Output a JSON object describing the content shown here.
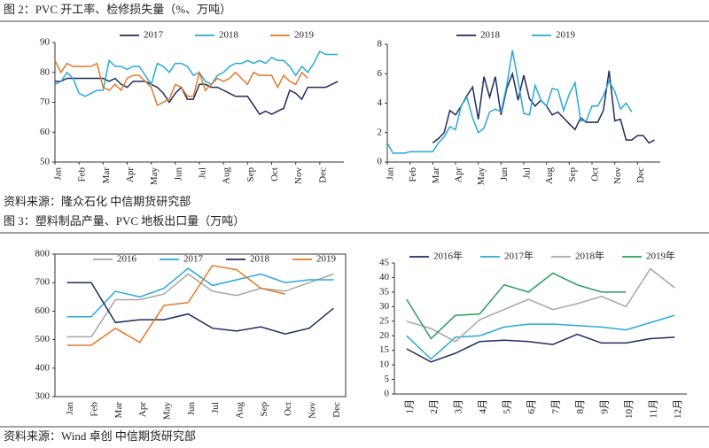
{
  "captions": [
    "图 2：PVC 开工率、检修损失量（%、万吨）",
    "图 3：塑料制品产量、PVC 地板出口量（万吨）"
  ],
  "sources": [
    "资料来源：隆众石化  中信期货研究部",
    "资料来源：Wind  卓创  中信期货研究部"
  ],
  "chart_data": [
    {
      "type": "line",
      "x": [
        0,
        1,
        2,
        3,
        4,
        5,
        6,
        7,
        8,
        9,
        10,
        11,
        12,
        13,
        14,
        15,
        16,
        17,
        18,
        19,
        20,
        21,
        22,
        23,
        24,
        25,
        26,
        27,
        28,
        29,
        30,
        31,
        32,
        33,
        34,
        35,
        36,
        37,
        38,
        39,
        40,
        41,
        42,
        43,
        44,
        45,
        46,
        47
      ],
      "xlim": [
        0,
        48
      ],
      "xticks": [
        {
          "value": 0,
          "label": "Jan"
        },
        {
          "value": 4,
          "label": "Feb"
        },
        {
          "value": 8,
          "label": "Mar"
        },
        {
          "value": 12,
          "label": "Apr"
        },
        {
          "value": 16,
          "label": "May"
        },
        {
          "value": 20,
          "label": "Jun"
        },
        {
          "value": 24,
          "label": "Jul"
        },
        {
          "value": 28,
          "label": "Aug"
        },
        {
          "value": 32,
          "label": "Sep"
        },
        {
          "value": 36,
          "label": "Oct"
        },
        {
          "value": 40,
          "label": "Nov"
        },
        {
          "value": 44,
          "label": "Dec"
        }
      ],
      "ylim": [
        50,
        90
      ],
      "yticks": [
        50,
        60,
        70,
        80,
        90
      ],
      "series": [
        {
          "name": "2017",
          "color": "#1f2d5c",
          "values": [
            77,
            77,
            78,
            78,
            78,
            78,
            78,
            78,
            78,
            77,
            78,
            76,
            75,
            77,
            77,
            77,
            76,
            75,
            73,
            70,
            73,
            75,
            71,
            71,
            76,
            76,
            75,
            75,
            74,
            73,
            72,
            72,
            72,
            69,
            66,
            67,
            66,
            67,
            68,
            74,
            73,
            71,
            75,
            75,
            75,
            75,
            76,
            77
          ]
        },
        {
          "name": "2018",
          "color": "#29a9d8",
          "values": [
            76,
            77,
            80,
            78,
            73,
            72,
            73,
            74,
            74,
            84,
            82,
            82,
            81,
            82,
            82,
            79,
            76,
            83,
            82,
            80,
            83,
            83,
            82,
            79,
            80,
            77,
            76,
            79,
            80,
            82,
            83,
            83,
            84,
            83,
            84,
            83,
            85,
            84,
            84,
            82,
            79,
            82,
            80,
            83,
            87,
            86,
            86,
            86
          ]
        },
        {
          "name": "2019",
          "color": "#e07a28",
          "values": [
            84,
            80,
            83,
            82,
            82,
            82,
            82,
            83,
            75,
            74,
            76,
            74,
            78,
            79,
            79,
            77,
            75,
            69,
            70,
            71,
            76,
            75,
            72,
            72,
            80,
            74,
            76,
            78,
            77,
            78,
            80,
            78,
            76,
            80,
            79,
            79,
            79,
            75,
            79,
            77,
            76,
            80,
            78,
            null,
            null,
            null,
            null,
            null
          ]
        }
      ]
    },
    {
      "type": "line",
      "x": [
        0,
        1,
        2,
        3,
        4,
        5,
        6,
        7,
        8,
        9,
        10,
        11,
        12,
        13,
        14,
        15,
        16,
        17,
        18,
        19,
        20,
        21,
        22,
        23,
        24,
        25,
        26,
        27,
        28,
        29,
        30,
        31,
        32,
        33,
        34,
        35,
        36,
        37,
        38,
        39,
        40,
        41,
        42,
        43,
        44,
        45,
        46,
        47
      ],
      "xlim": [
        0,
        48
      ],
      "xticks": [
        {
          "value": 0,
          "label": "Jan"
        },
        {
          "value": 4,
          "label": "Feb"
        },
        {
          "value": 8,
          "label": "Mar"
        },
        {
          "value": 12,
          "label": "Apr"
        },
        {
          "value": 16,
          "label": "May"
        },
        {
          "value": 20,
          "label": "Jun"
        },
        {
          "value": 24,
          "label": "Jul"
        },
        {
          "value": 28,
          "label": "Aug"
        },
        {
          "value": 32,
          "label": "Sep"
        },
        {
          "value": 36,
          "label": "Oct"
        },
        {
          "value": 40,
          "label": "Nov"
        },
        {
          "value": 44,
          "label": "Dec"
        }
      ],
      "ylim": [
        0,
        8
      ],
      "yticks": [
        0,
        2,
        4,
        6,
        8
      ],
      "series": [
        {
          "name": "2018",
          "color": "#1f2d5c",
          "values": [
            null,
            null,
            null,
            null,
            null,
            null,
            null,
            null,
            1.3,
            1.6,
            2.0,
            3.5,
            3.2,
            3.8,
            4.5,
            5.1,
            2.9,
            5.8,
            4.4,
            5.8,
            3.2,
            5.0,
            6.0,
            4.2,
            5.9,
            4.3,
            3.8,
            4.2,
            3.8,
            3.2,
            3.4,
            3.0,
            2.6,
            2.2,
            3.0,
            2.7,
            2.7,
            2.7,
            3.5,
            6.2,
            2.8,
            2.9,
            1.5,
            1.5,
            1.8,
            1.8,
            1.3,
            1.5
          ]
        },
        {
          "name": "2019",
          "color": "#29a9d8",
          "values": [
            1.3,
            0.6,
            0.6,
            0.6,
            0.7,
            0.7,
            0.7,
            0.7,
            0.7,
            1.3,
            1.7,
            2.4,
            2.2,
            3.8,
            4.4,
            3.0,
            2.0,
            2.3,
            3.4,
            3.6,
            3.4,
            5.2,
            7.6,
            5.5,
            3.3,
            3.2,
            5.2,
            4.2,
            3.8,
            5.0,
            4.9,
            3.5,
            4.6,
            5.4,
            2.8,
            2.8,
            3.8,
            3.8,
            4.5,
            5.5,
            4.8,
            3.6,
            4.0,
            3.4,
            null,
            null,
            null,
            null
          ]
        }
      ]
    },
    {
      "type": "line",
      "categories": [
        "Jan",
        "Feb",
        "Mar",
        "Apr",
        "May",
        "Jun",
        "Jul",
        "Aug",
        "Sep",
        "Oct",
        "Nov",
        "Dec"
      ],
      "ylim": [
        300,
        800
      ],
      "yticks": [
        300,
        400,
        500,
        600,
        700,
        800
      ],
      "series": [
        {
          "name": "2016",
          "color": "#a6a6a6",
          "values": [
            510,
            510,
            640,
            640,
            660,
            730,
            670,
            655,
            680,
            670,
            700,
            730
          ]
        },
        {
          "name": "2017",
          "color": "#29a9d8",
          "values": [
            580,
            580,
            670,
            650,
            680,
            750,
            690,
            710,
            730,
            700,
            710,
            710
          ]
        },
        {
          "name": "2018",
          "color": "#1f2d5c",
          "values": [
            700,
            700,
            560,
            570,
            570,
            590,
            540,
            530,
            545,
            520,
            540,
            610
          ]
        },
        {
          "name": "2019",
          "color": "#e07a28",
          "values": [
            480,
            480,
            540,
            490,
            620,
            630,
            760,
            745,
            680,
            660,
            null,
            null
          ]
        }
      ]
    },
    {
      "type": "line",
      "categories": [
        "1月",
        "2月",
        "3月",
        "4月",
        "5月",
        "6月",
        "7月",
        "8月",
        "9月",
        "10月",
        "11月",
        "12月"
      ],
      "ylim": [
        0,
        45
      ],
      "yticks": [
        0,
        5,
        10,
        15,
        20,
        25,
        30,
        35,
        40,
        45
      ],
      "series": [
        {
          "name": "2016年",
          "color": "#1f2d5c",
          "values": [
            15.5,
            11,
            14,
            18,
            18.5,
            18,
            17,
            20.5,
            17.5,
            17.5,
            19,
            19.5
          ]
        },
        {
          "name": "2017年",
          "color": "#29a9d8",
          "values": [
            20,
            12,
            19.5,
            20,
            23,
            24,
            24,
            23.5,
            23,
            22,
            24.5,
            27
          ]
        },
        {
          "name": "2018年",
          "color": "#a6a6a6",
          "values": [
            25,
            22.5,
            18,
            25.5,
            29,
            32.5,
            29,
            31,
            33.5,
            30,
            43,
            36.5
          ]
        },
        {
          "name": "2019年",
          "color": "#2a9d5a",
          "values": [
            32.5,
            19,
            27,
            27.5,
            37.5,
            35,
            41.5,
            37.5,
            35,
            35,
            null,
            null
          ]
        }
      ]
    }
  ]
}
